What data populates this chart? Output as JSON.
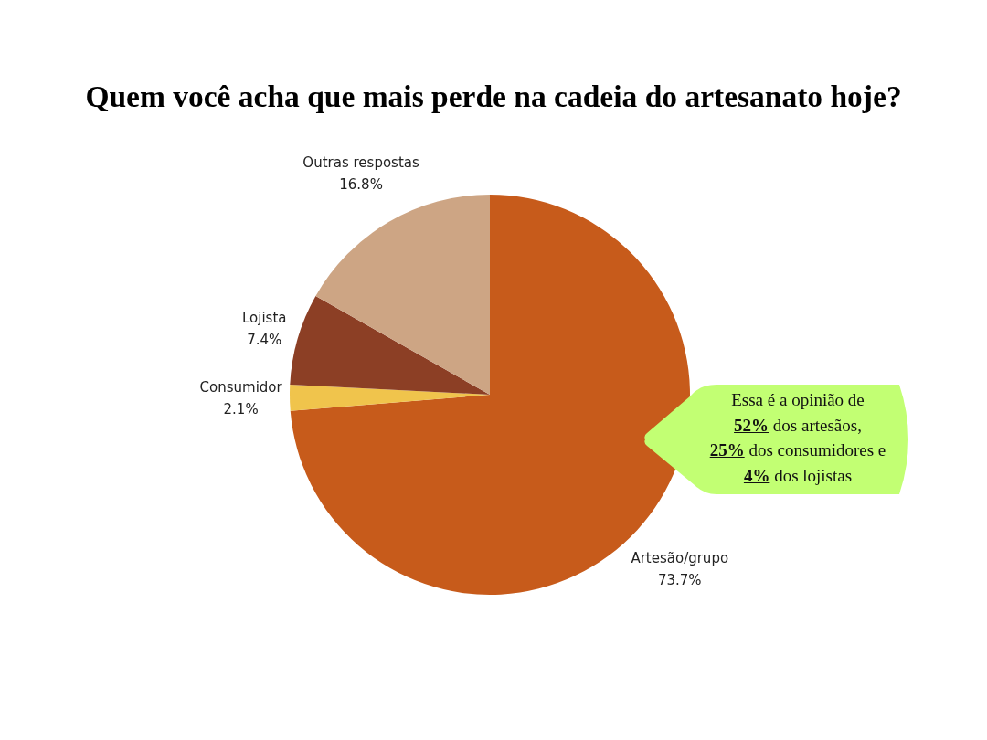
{
  "chart_data": {
    "type": "pie",
    "title": "Quem você acha que mais perde na cadeia do artesanato hoje?",
    "categories": [
      "Artesão/grupo",
      "Consumidor",
      "Lojista",
      "Outras respostas"
    ],
    "values": [
      73.7,
      2.1,
      7.4,
      16.8
    ],
    "colors": [
      "#c75b1b",
      "#f0c44c",
      "#8c3f25",
      "#cda584"
    ],
    "value_labels": [
      "73.7%",
      "2.1%",
      "7.4%",
      "16.8%"
    ],
    "annotations": [
      "Essa é a opinião de\n52% dos artesãos,\n25% dos consumidores e\n4% dos lojistas"
    ]
  }
}
